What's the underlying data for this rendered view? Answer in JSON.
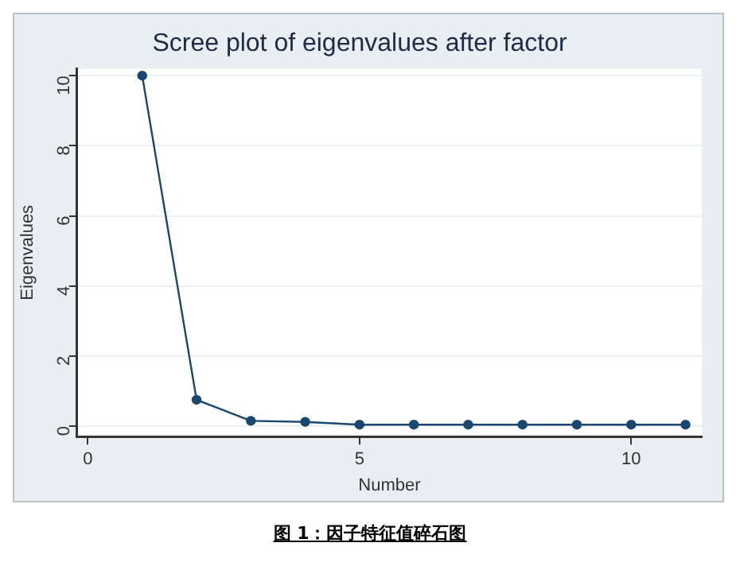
{
  "chart_data": {
    "type": "line",
    "title": "Scree plot of eigenvalues after factor",
    "xlabel": "Number",
    "ylabel": "Eigenvalues",
    "x": [
      1,
      2,
      3,
      4,
      5,
      6,
      7,
      8,
      9,
      10,
      11
    ],
    "values": [
      10,
      0.75,
      0.15,
      0.12,
      0.04,
      0.04,
      0.04,
      0.04,
      0.04,
      0.04,
      0.04
    ],
    "color": "#1a476f",
    "marker": "circle",
    "line_style": "solid",
    "xlim": [
      -0.2,
      11.3
    ],
    "xticks": [
      0,
      5,
      10
    ],
    "ylim": [
      -0.3,
      10.2
    ],
    "yticks": [
      0,
      2,
      4,
      6,
      8,
      10
    ],
    "grid": "y",
    "legend": false,
    "annotations": [
      "图 1：因子特征值碎石图"
    ]
  }
}
